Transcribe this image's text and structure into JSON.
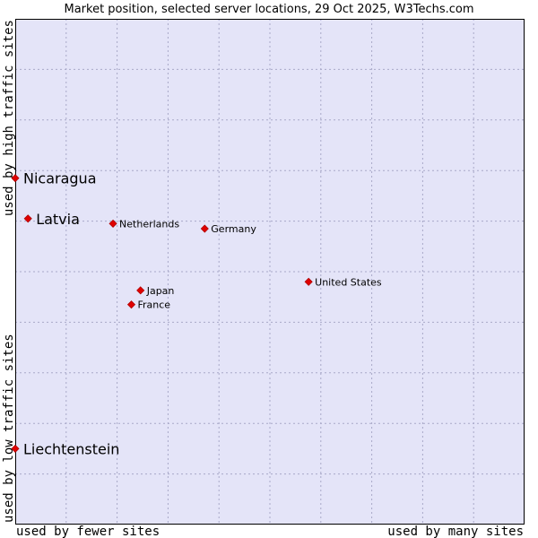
{
  "chart_data": {
    "type": "scatter",
    "title": "Market position, selected server locations, 29 Oct 2025, W3Techs.com",
    "xlabel_left": "used by fewer sites",
    "xlabel_right": "used by many sites",
    "ylabel_bottom": "used by low traffic sites",
    "ylabel_top": "used by high traffic sites",
    "grid": true,
    "xlim": [
      0,
      100
    ],
    "ylim": [
      0,
      100
    ],
    "colors": {
      "plot_bg": "#e4e4f8",
      "point": "#e00000",
      "border": "#000000"
    },
    "points": [
      {
        "label": "Nicaragua",
        "x": 0,
        "y": 68.5,
        "emphasis": true
      },
      {
        "label": "Latvia",
        "x": 2.5,
        "y": 60.5,
        "emphasis": true
      },
      {
        "label": "Netherlands",
        "x": 19.2,
        "y": 59.5,
        "emphasis": false
      },
      {
        "label": "Germany",
        "x": 37.2,
        "y": 58.5,
        "emphasis": false
      },
      {
        "label": "United States",
        "x": 57.6,
        "y": 48.0,
        "emphasis": false
      },
      {
        "label": "Japan",
        "x": 24.6,
        "y": 46.3,
        "emphasis": false
      },
      {
        "label": "France",
        "x": 22.8,
        "y": 43.5,
        "emphasis": false
      },
      {
        "label": "Liechtenstein",
        "x": 0,
        "y": 15.0,
        "emphasis": true
      }
    ]
  }
}
